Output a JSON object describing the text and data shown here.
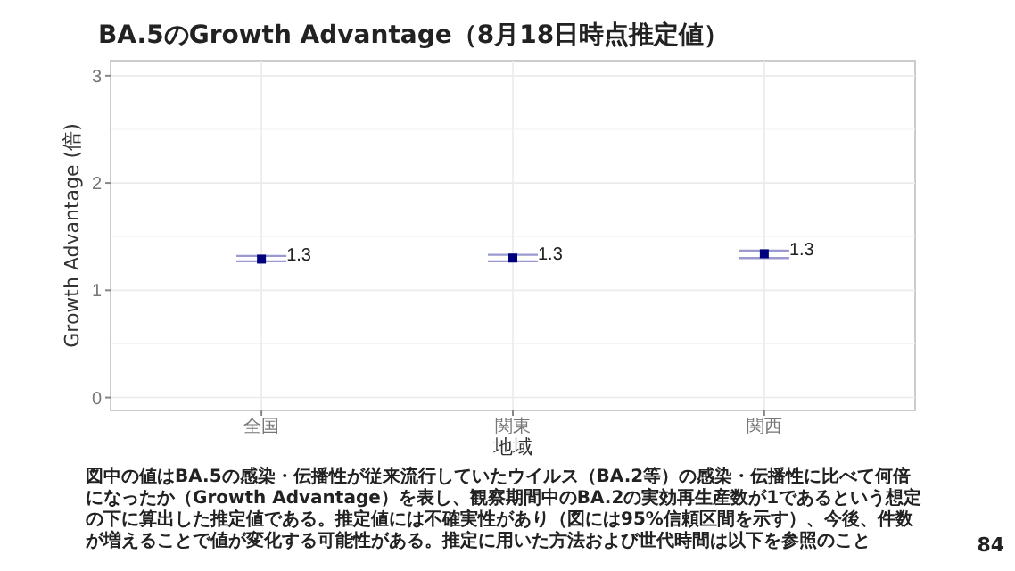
{
  "chart_data": {
    "type": "scatter",
    "title": "BA.5のGrowth Advantage（8月18日時点推定値）",
    "xlabel": "地域",
    "ylabel": "Growth Advantage (倍)",
    "categories": [
      "全国",
      "関東",
      "関西"
    ],
    "series": [
      {
        "color": "#00007f",
        "values": [
          1.29,
          1.3,
          1.34
        ],
        "errors": [
          [
            1.27,
            1.32
          ],
          [
            1.27,
            1.33
          ],
          [
            1.3,
            1.37
          ]
        ],
        "value_labels": [
          "1.3",
          "1.3",
          "1.3"
        ]
      }
    ],
    "ylim": [
      -0.12,
      3.14
    ],
    "yticks": [
      0,
      1,
      2,
      3
    ],
    "grid": true,
    "marker": "square",
    "annotations": [
      "図中の値はBA.5の感染・伝播性が従来流行していたウイルス（BA.2等）の感染・伝播性に比べて何倍になったか（Growth Advantage）を表し、観察期間中のBA.2の実効再生産数が1であるという想定の下に算出した推定値である。推定値には不確実性があり（図には95%信頼区間を示す）、今後、件数が増えることで値が変化する可能性がある。推定に用いた方法および世代時間は以下を参照のこと",
      "84"
    ]
  }
}
